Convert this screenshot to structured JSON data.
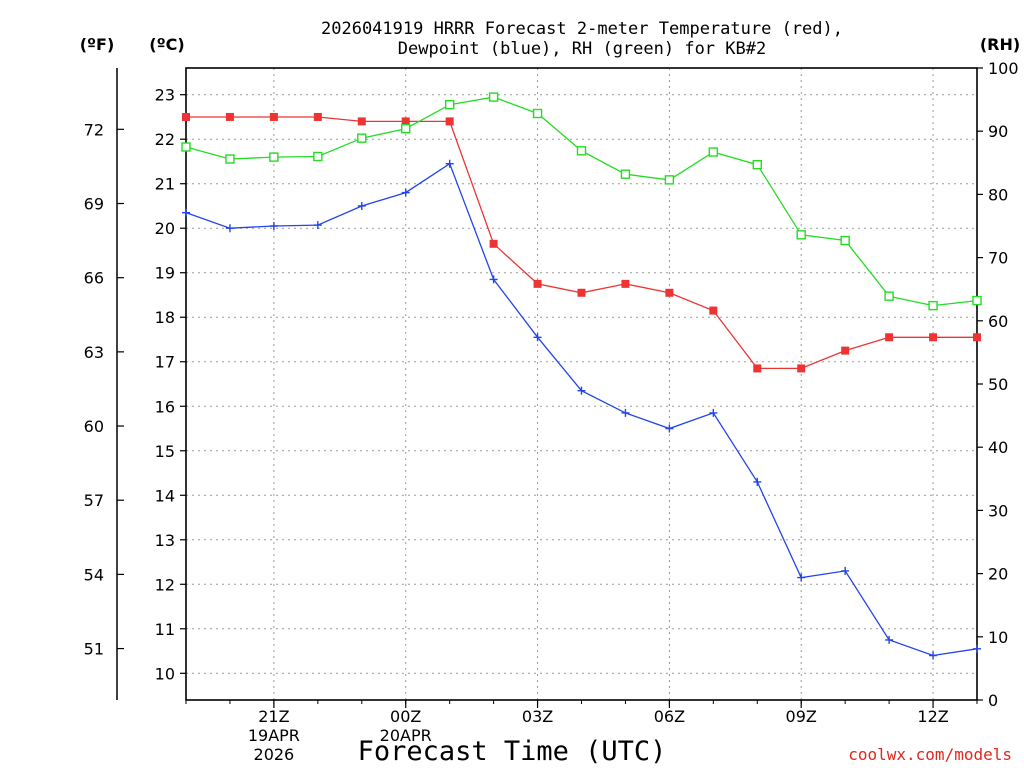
{
  "chart_data": {
    "type": "line",
    "title_lines": [
      "2026041919 HRRR Forecast 2-meter Temperature (red),",
      "Dewpoint (blue), RH (green) for KB#2"
    ],
    "xlabel": "Forecast Time (UTC)",
    "credit": "coolwx.com/models",
    "units": {
      "fahrenheit": "(ºF)",
      "celsius": "(ºC)",
      "rh": "(RH)"
    },
    "x_range_hours": [
      0,
      18
    ],
    "celsius_range": [
      9.4,
      23.6
    ],
    "rh_range": [
      0,
      100
    ],
    "x_ticks": [
      {
        "hour": 2,
        "label": "21Z",
        "date": "19APR",
        "year": "2026"
      },
      {
        "hour": 5,
        "label": "00Z",
        "date": "20APR",
        "year": ""
      },
      {
        "hour": 8,
        "label": "03Z",
        "date": "",
        "year": ""
      },
      {
        "hour": 11,
        "label": "06Z",
        "date": "",
        "year": ""
      },
      {
        "hour": 14,
        "label": "09Z",
        "date": "",
        "year": ""
      },
      {
        "hour": 17,
        "label": "12Z",
        "date": "",
        "year": ""
      }
    ],
    "celsius_ticks": [
      10,
      11,
      12,
      13,
      14,
      15,
      16,
      17,
      18,
      19,
      20,
      21,
      22,
      23
    ],
    "fahrenheit_ticks": [
      51,
      54,
      57,
      60,
      63,
      66,
      69,
      72
    ],
    "rh_ticks": [
      0,
      10,
      20,
      30,
      40,
      50,
      60,
      70,
      80,
      90,
      100
    ],
    "hours": [
      0,
      1,
      2,
      3,
      4,
      5,
      6,
      7,
      8,
      9,
      10,
      11,
      12,
      13,
      14,
      15,
      16,
      17,
      18
    ],
    "series": [
      {
        "name": "Temperature",
        "unit": "C",
        "color": "#ee3333",
        "marker": "filled-square",
        "values": [
          22.5,
          22.5,
          22.5,
          22.5,
          22.4,
          22.4,
          22.4,
          19.65,
          18.75,
          18.55,
          18.75,
          18.55,
          18.15,
          16.85,
          16.85,
          17.25,
          17.55,
          17.55,
          17.55
        ]
      },
      {
        "name": "Dewpoint",
        "unit": "C",
        "color": "#2244ee",
        "marker": "plus",
        "values": [
          20.35,
          20.0,
          20.05,
          20.07,
          20.5,
          20.8,
          21.45,
          18.85,
          17.55,
          16.35,
          15.85,
          15.5,
          15.85,
          14.3,
          12.15,
          12.3,
          10.75,
          10.4,
          10.55
        ]
      },
      {
        "name": "RH",
        "unit": "%",
        "color": "#22dd22",
        "marker": "open-square",
        "values": [
          87.5,
          85.6,
          85.9,
          86.0,
          88.9,
          90.4,
          94.2,
          95.4,
          92.8,
          86.9,
          83.2,
          82.3,
          86.7,
          84.7,
          73.6,
          72.7,
          63.9,
          62.4,
          63.2
        ]
      }
    ]
  }
}
